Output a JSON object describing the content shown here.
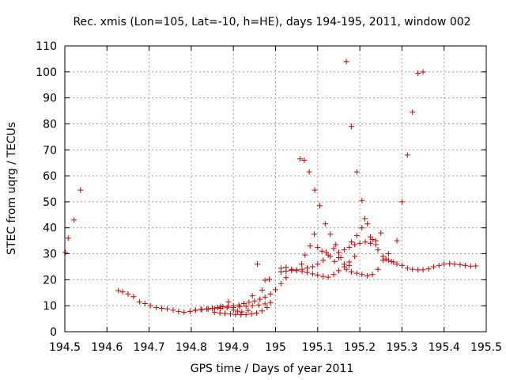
{
  "chart_data": {
    "type": "scatter",
    "title": "Rec. xmis (Lon=105, Lat=-10, h=HE), days 194-195, 2011, window 002",
    "xlabel": "GPS time / Days of year 2011",
    "ylabel": "STEC from uqrg / TECUs",
    "xlim": [
      194.5,
      195.5
    ],
    "ylim": [
      0,
      110
    ],
    "x_ticks": [
      194.5,
      194.6,
      194.7,
      194.8,
      194.9,
      195,
      195.1,
      195.2,
      195.3,
      195.4,
      195.5
    ],
    "x_tick_labels": [
      "194.5",
      "194.6",
      "194.7",
      "194.8",
      "194.9",
      "195",
      "195.1",
      "195.2",
      "195.3",
      "195.4",
      "195.5"
    ],
    "y_ticks": [
      0,
      10,
      20,
      30,
      40,
      50,
      60,
      70,
      80,
      90,
      100,
      110
    ],
    "y_tick_labels": [
      "0",
      "10",
      "20",
      "30",
      "40",
      "50",
      "60",
      "70",
      "80",
      "90",
      "100",
      "110"
    ],
    "grid": true,
    "marker": "+",
    "color": "#cc0000",
    "series": [
      {
        "name": "STEC",
        "points": [
          [
            194.501,
            30.5
          ],
          [
            194.508,
            36
          ],
          [
            194.522,
            43
          ],
          [
            194.537,
            54.5
          ],
          [
            194.627,
            15.8
          ],
          [
            194.637,
            15.3
          ],
          [
            194.65,
            14.5
          ],
          [
            194.663,
            13.5
          ],
          [
            194.677,
            11.5
          ],
          [
            194.69,
            10.8
          ],
          [
            194.703,
            10
          ],
          [
            194.717,
            9.3
          ],
          [
            194.73,
            9
          ],
          [
            194.743,
            8.8
          ],
          [
            194.757,
            8.3
          ],
          [
            194.77,
            7.8
          ],
          [
            194.783,
            7.5
          ],
          [
            194.797,
            7.8
          ],
          [
            194.81,
            8.2
          ],
          [
            194.823,
            8.6
          ],
          [
            194.837,
            8.8
          ],
          [
            194.85,
            9
          ],
          [
            194.863,
            9.3
          ],
          [
            194.875,
            9.6
          ],
          [
            194.888,
            9.8
          ],
          [
            194.9,
            10
          ],
          [
            194.913,
            10.3
          ],
          [
            194.925,
            10.8
          ],
          [
            194.937,
            11.3
          ],
          [
            194.95,
            11.8
          ],
          [
            194.963,
            12.5
          ],
          [
            194.975,
            13.3
          ],
          [
            194.988,
            14.5
          ],
          [
            195,
            16.2
          ],
          [
            195.013,
            18.5
          ],
          [
            195.025,
            20.8
          ],
          [
            194.81,
            8.3
          ],
          [
            194.825,
            8.5
          ],
          [
            194.84,
            8.7
          ],
          [
            194.855,
            8.9
          ],
          [
            194.87,
            9
          ],
          [
            194.885,
            9.2
          ],
          [
            194.9,
            9.3
          ],
          [
            194.915,
            9.6
          ],
          [
            194.93,
            9.8
          ],
          [
            194.945,
            10
          ],
          [
            194.96,
            10.3
          ],
          [
            194.975,
            10.7
          ],
          [
            194.988,
            11.2
          ],
          [
            194.855,
            7.5
          ],
          [
            194.868,
            7.2
          ],
          [
            194.88,
            7
          ],
          [
            194.893,
            6.8
          ],
          [
            194.905,
            6.6
          ],
          [
            194.918,
            6.5
          ],
          [
            194.93,
            6.6
          ],
          [
            194.943,
            6.8
          ],
          [
            194.955,
            7.2
          ],
          [
            194.968,
            8
          ],
          [
            194.98,
            9.3
          ],
          [
            194.87,
            9.8
          ],
          [
            194.888,
            11.5
          ],
          [
            194.9,
            8.3
          ],
          [
            194.91,
            7.9
          ],
          [
            194.92,
            7.6
          ],
          [
            194.935,
            8.2
          ],
          [
            194.945,
            13.8
          ],
          [
            194.957,
            26
          ],
          [
            194.968,
            16
          ],
          [
            194.975,
            19.8
          ],
          [
            194.985,
            20.2
          ],
          [
            195.013,
            24.5
          ],
          [
            195.025,
            24.8
          ],
          [
            195.038,
            24
          ],
          [
            195.05,
            23.5
          ],
          [
            195.063,
            23.2
          ],
          [
            195.075,
            22.8
          ],
          [
            195.088,
            22.3
          ],
          [
            195.1,
            21.8
          ],
          [
            195.113,
            21.3
          ],
          [
            195.125,
            21
          ],
          [
            195.138,
            22
          ],
          [
            195.15,
            23.5
          ],
          [
            195.163,
            25
          ],
          [
            195.175,
            26.8
          ],
          [
            195.188,
            29
          ],
          [
            195.013,
            23
          ],
          [
            195.025,
            23.3
          ],
          [
            195.038,
            23.6
          ],
          [
            195.05,
            23.8
          ],
          [
            195.063,
            24
          ],
          [
            195.075,
            24.5
          ],
          [
            195.088,
            25
          ],
          [
            195.1,
            26
          ],
          [
            195.113,
            27.5
          ],
          [
            195.125,
            29.5
          ],
          [
            195.138,
            32
          ],
          [
            195.062,
            26
          ],
          [
            195.07,
            29.5
          ],
          [
            195.082,
            33
          ],
          [
            195.092,
            37.5
          ],
          [
            195.1,
            32.5
          ],
          [
            195.11,
            31
          ],
          [
            195.12,
            30.5
          ],
          [
            195.13,
            29
          ],
          [
            195.14,
            27
          ],
          [
            195.058,
            66.5
          ],
          [
            195.068,
            66
          ],
          [
            195.08,
            61.5
          ],
          [
            195.093,
            54.5
          ],
          [
            195.105,
            48.5
          ],
          [
            195.118,
            41.5
          ],
          [
            195.13,
            37.5
          ],
          [
            195.143,
            33.5
          ],
          [
            195.155,
            28.5
          ],
          [
            195.168,
            24
          ],
          [
            195.18,
            23
          ],
          [
            195.193,
            22.5
          ],
          [
            195.205,
            22
          ],
          [
            195.218,
            21.5
          ],
          [
            195.23,
            22
          ],
          [
            195.243,
            24
          ],
          [
            195.255,
            27.5
          ],
          [
            195.268,
            30
          ],
          [
            195.168,
            104
          ],
          [
            195.18,
            79
          ],
          [
            195.193,
            61.5
          ],
          [
            195.205,
            50.5
          ],
          [
            195.218,
            41.5
          ],
          [
            195.23,
            35.5
          ],
          [
            195.243,
            31.5
          ],
          [
            195.255,
            29
          ],
          [
            195.268,
            27.5
          ],
          [
            195.28,
            26.8
          ],
          [
            195.15,
            30.5
          ],
          [
            195.163,
            31.5
          ],
          [
            195.175,
            32.5
          ],
          [
            195.188,
            33.5
          ],
          [
            195.2,
            34
          ],
          [
            195.213,
            34.5
          ],
          [
            195.225,
            34
          ],
          [
            195.238,
            33.5
          ],
          [
            195.18,
            34.5
          ],
          [
            195.193,
            37
          ],
          [
            195.205,
            40
          ],
          [
            195.212,
            43.5
          ],
          [
            195.225,
            36.5
          ],
          [
            195.238,
            35
          ],
          [
            195.15,
            28.5
          ],
          [
            195.163,
            26
          ],
          [
            195.175,
            25.5
          ],
          [
            195.25,
            38
          ],
          [
            195.262,
            28
          ],
          [
            195.275,
            27
          ],
          [
            195.288,
            35
          ],
          [
            195.3,
            50
          ],
          [
            195.313,
            68
          ],
          [
            195.325,
            84.5
          ],
          [
            195.338,
            99.5
          ],
          [
            195.35,
            100
          ],
          [
            195.288,
            26
          ],
          [
            195.3,
            25.5
          ],
          [
            195.313,
            24.5
          ],
          [
            195.325,
            24
          ],
          [
            195.338,
            23.8
          ],
          [
            195.35,
            23.8
          ],
          [
            195.363,
            24.2
          ],
          [
            195.375,
            25
          ],
          [
            195.388,
            25.5
          ],
          [
            195.4,
            26
          ],
          [
            195.413,
            26.2
          ],
          [
            195.425,
            26
          ],
          [
            195.438,
            25.8
          ],
          [
            195.45,
            25.5
          ],
          [
            195.463,
            25.2
          ],
          [
            195.475,
            25.3
          ]
        ]
      }
    ]
  }
}
